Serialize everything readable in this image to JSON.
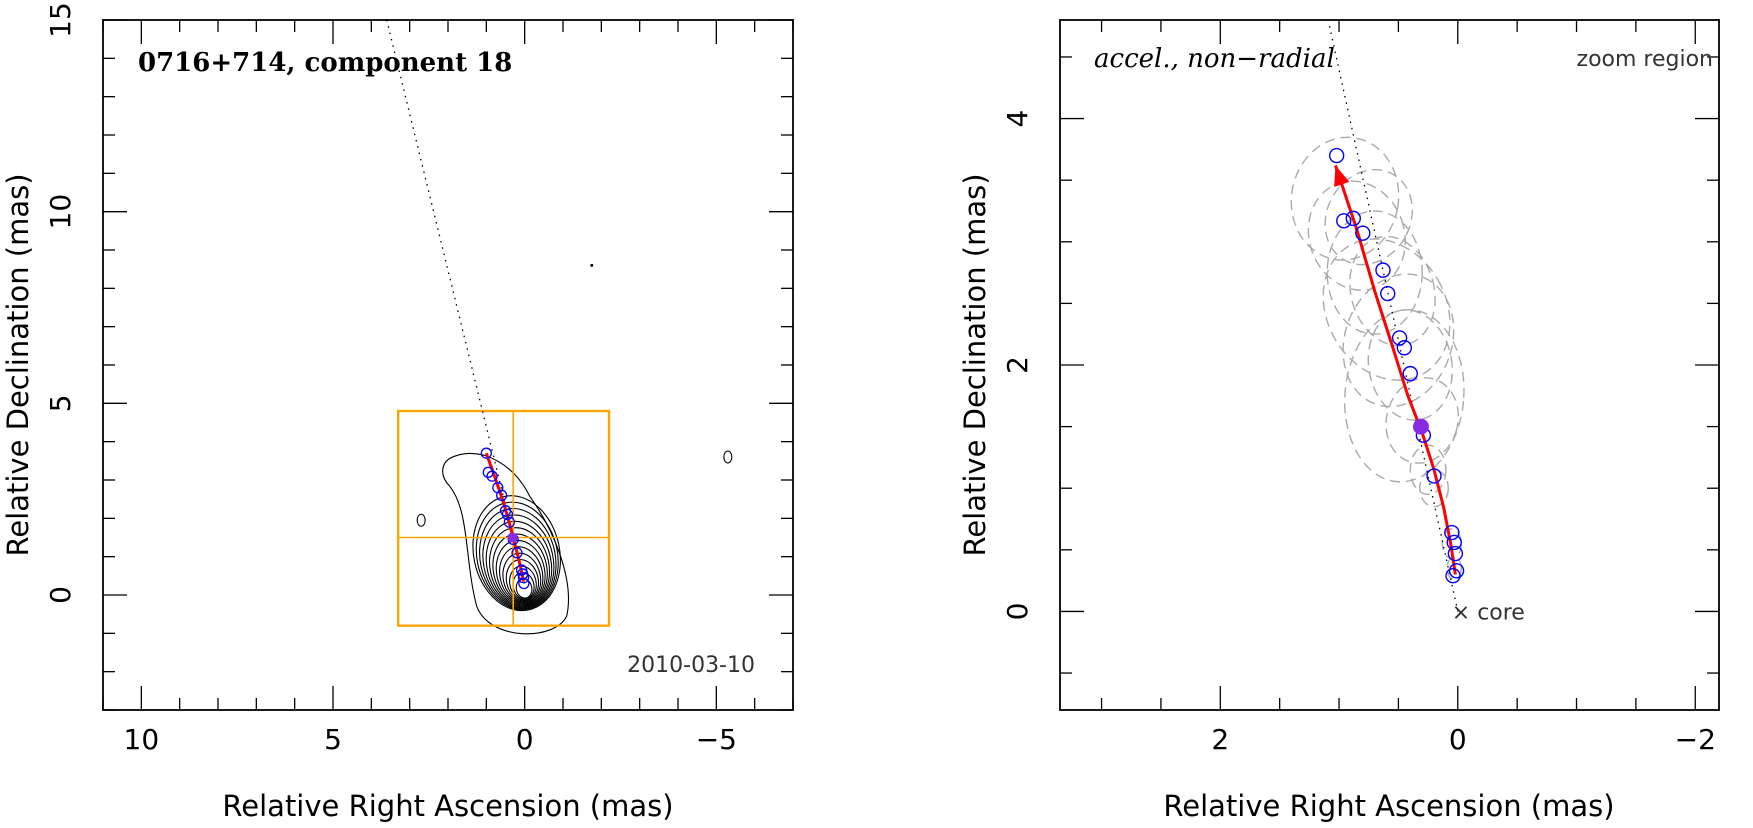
{
  "chart_data": [
    {
      "id": "left",
      "type": "scatter",
      "title": "0716+714, component 18",
      "date_label": "2010-03-10",
      "xlabel": "Relative Right Ascension (mas)",
      "ylabel": "Relative Declination (mas)",
      "xlim": [
        11,
        -7
      ],
      "ylim": [
        -3,
        15
      ],
      "xticks_major": [
        10,
        5,
        0,
        -5
      ],
      "xtick_labels": [
        "10",
        "5",
        "0",
        "−5"
      ],
      "yticks_major": [
        0,
        5,
        10,
        15
      ],
      "ytick_labels": [
        "0",
        "5",
        "10",
        "15"
      ],
      "minor_step": 1,
      "colors": {
        "track": "#ff0000",
        "zoom_box": "#ffa500",
        "points": "#0000ff",
        "highlight": "#8a2be2",
        "contours": "#000000",
        "axes": "#000000"
      },
      "zoom_box": {
        "x": [
          3.3,
          -2.2
        ],
        "y": [
          -0.8,
          4.8
        ],
        "cross_x": 0.3,
        "cross_y": 1.5
      },
      "dotted_line": {
        "x": [
          3.6,
          0.0
        ],
        "y": [
          15.0,
          0.3
        ]
      },
      "track": {
        "x": [
          1.0,
          0.75,
          0.55,
          0.38,
          0.22,
          0.1,
          0.03
        ],
        "y": [
          3.7,
          3.0,
          2.4,
          1.8,
          1.2,
          0.7,
          0.35
        ]
      },
      "points": {
        "x": [
          1.0,
          0.95,
          0.85,
          0.7,
          0.6,
          0.5,
          0.45,
          0.4,
          0.3,
          0.2,
          0.08,
          0.05,
          0.03,
          0.02
        ],
        "y": [
          3.7,
          3.2,
          3.1,
          2.8,
          2.6,
          2.2,
          2.1,
          1.9,
          1.45,
          1.1,
          0.65,
          0.55,
          0.45,
          0.3
        ]
      },
      "highlight_point": {
        "x": 0.32,
        "y": 1.5
      },
      "contour_core": {
        "x": 0.0,
        "y": 0.1
      }
    },
    {
      "id": "right",
      "type": "scatter",
      "title": "accel., non−radial",
      "corner_label": "zoom region",
      "core_label": "× core",
      "xlabel": "Relative Right Ascension (mas)",
      "ylabel": "Relative Declination (mas)",
      "xlim": [
        3.35,
        -2.2
      ],
      "ylim": [
        -0.8,
        4.8
      ],
      "xticks_major": [
        2,
        0,
        -2
      ],
      "xtick_labels": [
        "2",
        "0",
        "−2"
      ],
      "yticks_major": [
        0,
        2,
        4
      ],
      "ytick_labels": [
        "0",
        "2",
        "4"
      ],
      "minor_step": 0.5,
      "colors": {
        "track": "#ff0000",
        "points": "#0000ff",
        "highlight": "#8a2be2",
        "ellipses": "#aaaaaa",
        "axes": "#000000"
      },
      "dotted_line": {
        "x": [
          1.08,
          0.0
        ],
        "y": [
          4.75,
          0.0
        ]
      },
      "track": {
        "x": [
          1.03,
          0.85,
          0.7,
          0.55,
          0.42,
          0.3,
          0.2,
          0.12,
          0.06,
          0.02
        ],
        "y": [
          3.62,
          3.1,
          2.6,
          2.15,
          1.75,
          1.45,
          1.15,
          0.85,
          0.55,
          0.3
        ]
      },
      "arrow_tip": {
        "x": 1.03,
        "y": 3.62
      },
      "points": {
        "x": [
          1.02,
          0.96,
          0.88,
          0.8,
          0.63,
          0.59,
          0.49,
          0.45,
          0.4,
          0.29,
          0.2,
          0.05,
          0.03,
          0.02,
          0.01,
          0.04
        ],
        "y": [
          3.7,
          3.17,
          3.19,
          3.07,
          2.77,
          2.58,
          2.22,
          2.14,
          1.93,
          1.43,
          1.1,
          0.64,
          0.56,
          0.47,
          0.33,
          0.29
        ]
      },
      "highlight_point": {
        "x": 0.31,
        "y": 1.5
      },
      "ellipses": {
        "x": [
          0.95,
          0.85,
          0.75,
          0.7,
          0.55,
          0.5,
          0.4,
          0.3,
          0.45,
          0.6,
          0.25,
          0.2,
          0.05,
          0.03
        ],
        "y": [
          3.35,
          3.05,
          3.2,
          2.75,
          2.6,
          2.2,
          2.0,
          1.55,
          1.75,
          2.45,
          1.15,
          1.0,
          0.55,
          0.35
        ],
        "rx": [
          0.45,
          0.4,
          0.35,
          0.4,
          0.35,
          0.45,
          0.35,
          0.3,
          0.5,
          0.5,
          0.15,
          0.12,
          0.08,
          0.06
        ],
        "ry": [
          0.5,
          0.45,
          0.4,
          0.5,
          0.45,
          0.55,
          0.45,
          0.35,
          0.7,
          0.6,
          0.2,
          0.15,
          0.12,
          0.09
        ],
        "angle_deg": [
          10,
          -20,
          30,
          0,
          -15,
          20,
          -10,
          15,
          5,
          -30,
          0,
          0,
          0,
          0
        ]
      }
    }
  ]
}
